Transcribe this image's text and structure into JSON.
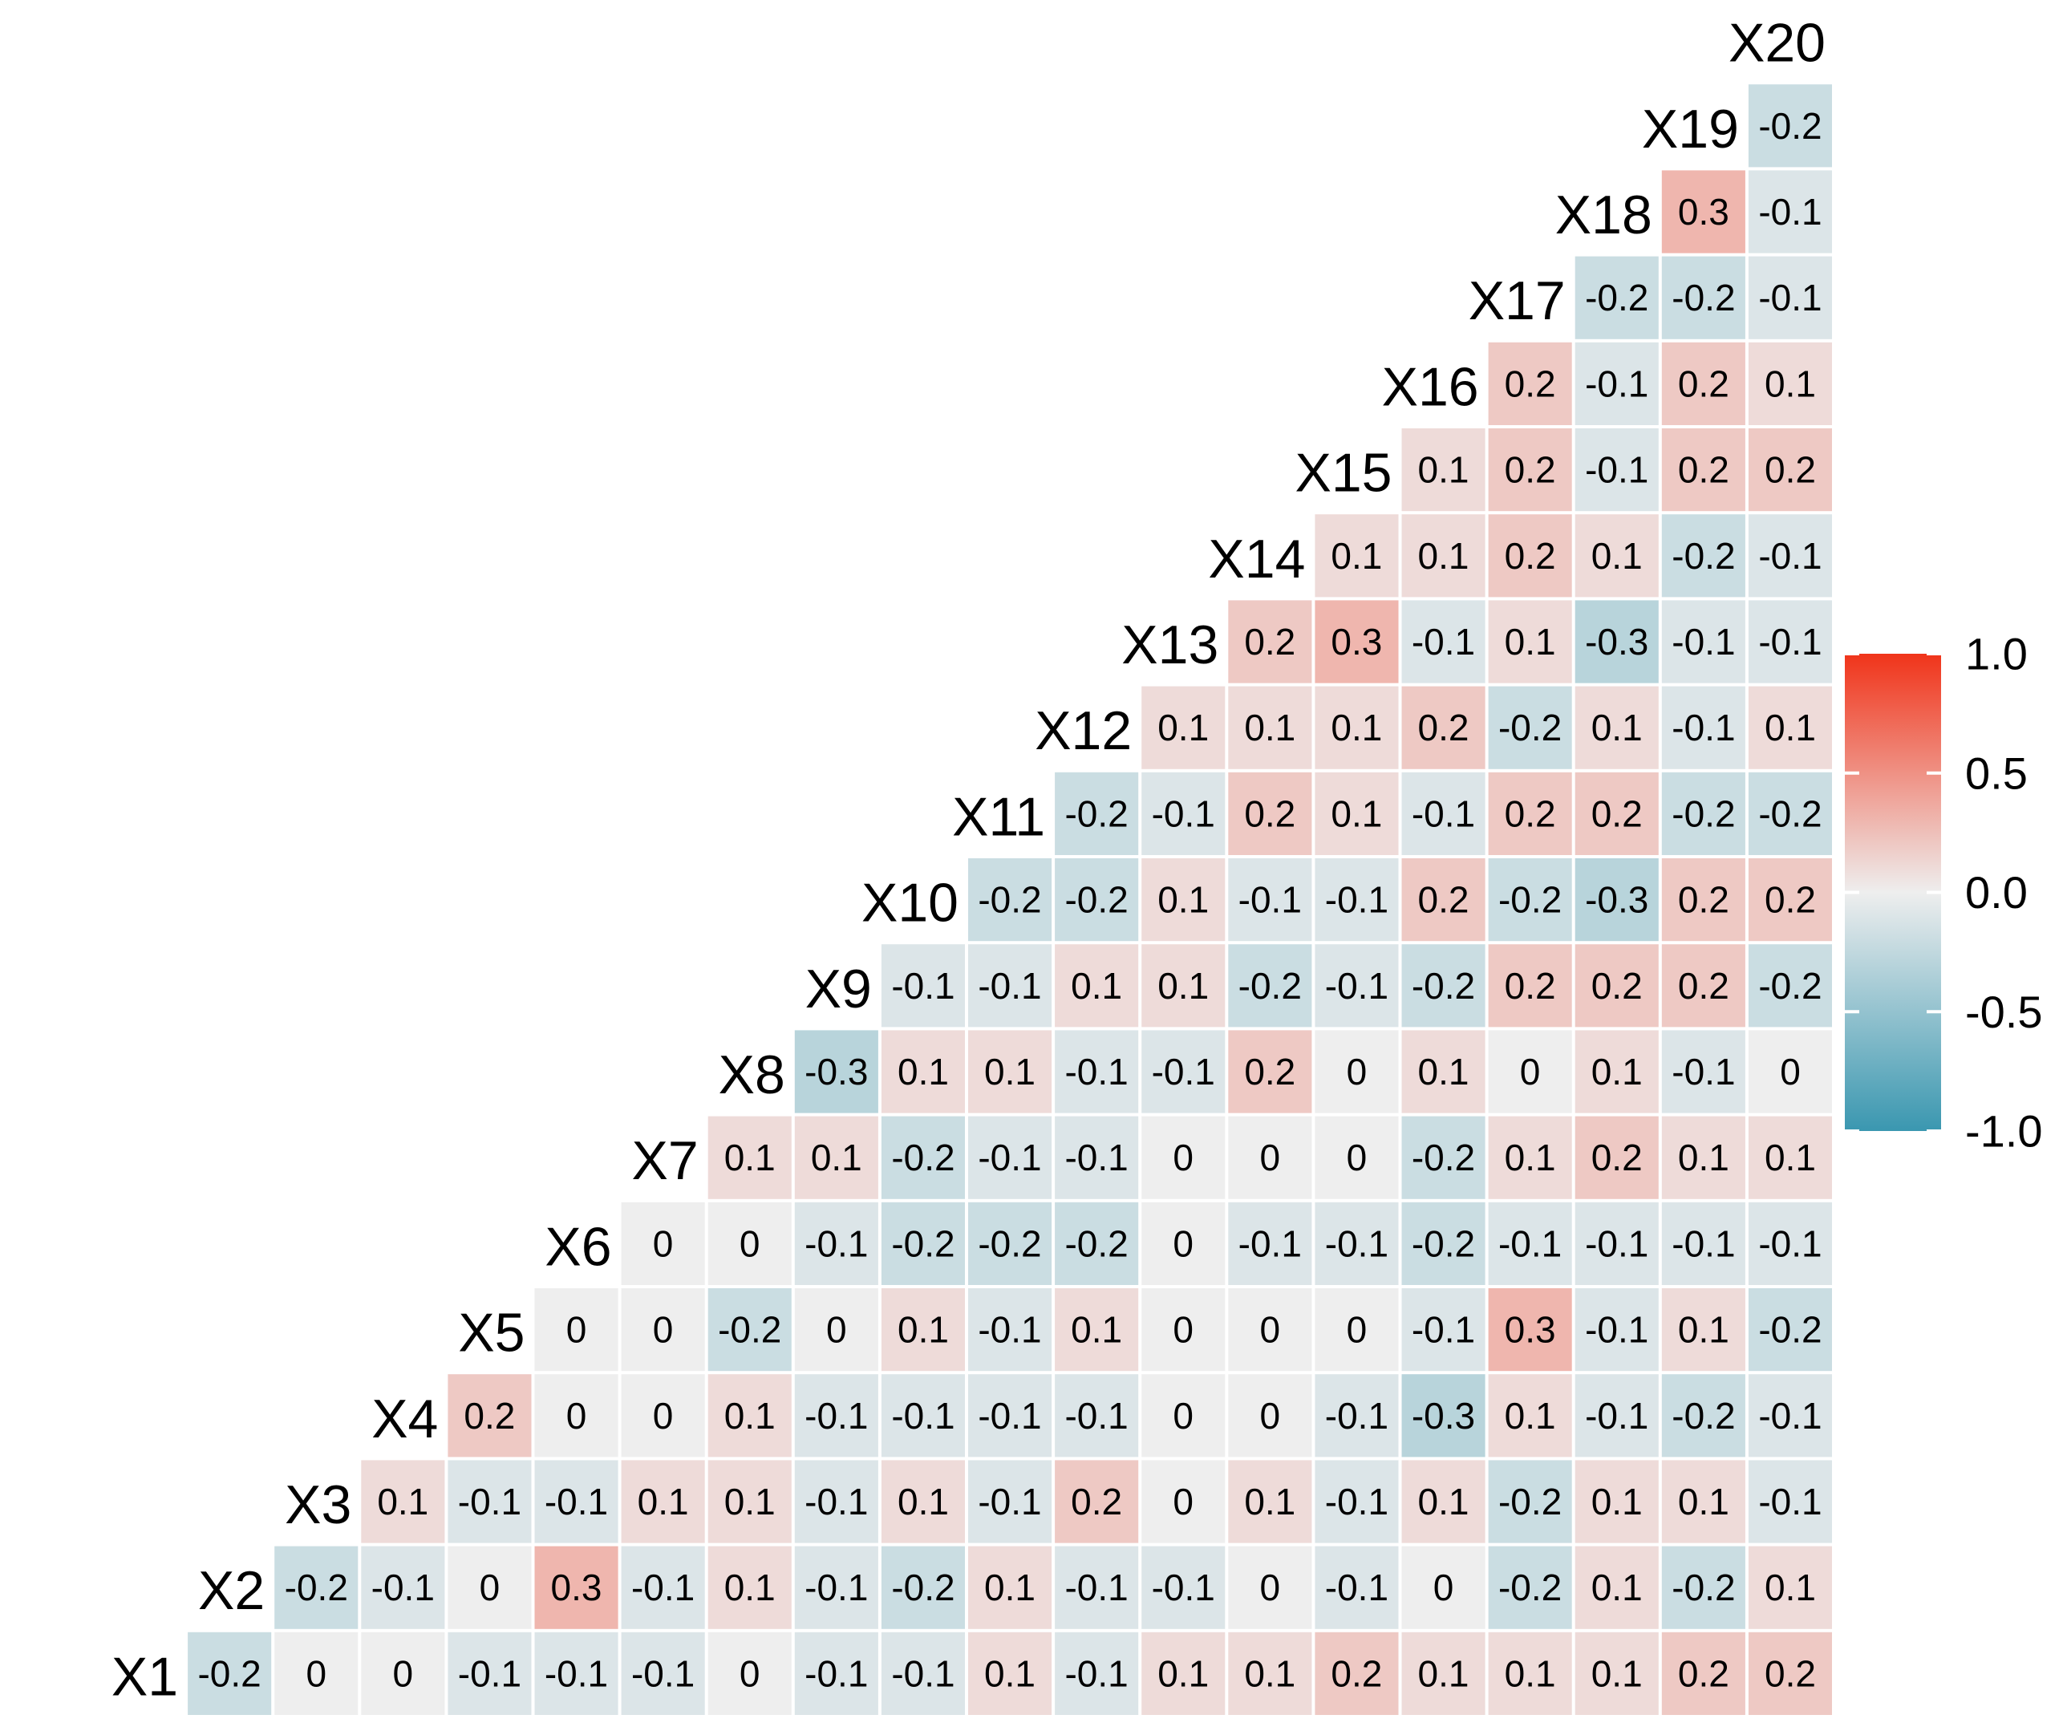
{
  "chart_data": {
    "type": "heatmap",
    "shape": "lower-triangle correlation matrix",
    "variables": [
      "X1",
      "X2",
      "X3",
      "X4",
      "X5",
      "X6",
      "X7",
      "X8",
      "X9",
      "X10",
      "X11",
      "X12",
      "X13",
      "X14",
      "X15",
      "X16",
      "X17",
      "X18",
      "X19",
      "X20"
    ],
    "rows": [
      {
        "label": "X1",
        "values": [
          "-0.2",
          "0",
          "0",
          "-0.1",
          "-0.1",
          "-0.1",
          "0",
          "-0.1",
          "-0.1",
          "0.1",
          "-0.1",
          "0.1",
          "0.1",
          "0.2",
          "0.1",
          "0.1",
          "0.1",
          "0.2",
          "0.2"
        ]
      },
      {
        "label": "X2",
        "values": [
          "-0.2",
          "-0.1",
          "0",
          "0.3",
          "-0.1",
          "0.1",
          "-0.1",
          "-0.2",
          "0.1",
          "-0.1",
          "-0.1",
          "0",
          "-0.1",
          "0",
          "-0.2",
          "0.1",
          "-0.2",
          "0.1"
        ]
      },
      {
        "label": "X3",
        "values": [
          "0.1",
          "-0.1",
          "-0.1",
          "0.1",
          "0.1",
          "-0.1",
          "0.1",
          "-0.1",
          "0.2",
          "0",
          "0.1",
          "-0.1",
          "0.1",
          "-0.2",
          "0.1",
          "0.1",
          "-0.1"
        ]
      },
      {
        "label": "X4",
        "values": [
          "0.2",
          "0",
          "0",
          "0.1",
          "-0.1",
          "-0.1",
          "-0.1",
          "-0.1",
          "0",
          "0",
          "-0.1",
          "-0.3",
          "0.1",
          "-0.1",
          "-0.2",
          "-0.1"
        ]
      },
      {
        "label": "X5",
        "values": [
          "0",
          "0",
          "-0.2",
          "0",
          "0.1",
          "-0.1",
          "0.1",
          "0",
          "0",
          "0",
          "-0.1",
          "0.3",
          "-0.1",
          "0.1",
          "-0.2"
        ]
      },
      {
        "label": "X6",
        "values": [
          "0",
          "0",
          "-0.1",
          "-0.2",
          "-0.2",
          "-0.2",
          "0",
          "-0.1",
          "-0.1",
          "-0.2",
          "-0.1",
          "-0.1",
          "-0.1",
          "-0.1"
        ]
      },
      {
        "label": "X7",
        "values": [
          "0.1",
          "0.1",
          "-0.2",
          "-0.1",
          "-0.1",
          "0",
          "0",
          "0",
          "-0.2",
          "0.1",
          "0.2",
          "0.1",
          "0.1"
        ]
      },
      {
        "label": "X8",
        "values": [
          "-0.3",
          "0.1",
          "0.1",
          "-0.1",
          "-0.1",
          "0.2",
          "0",
          "0.1",
          "0",
          "0.1",
          "-0.1",
          "0"
        ]
      },
      {
        "label": "X9",
        "values": [
          "-0.1",
          "-0.1",
          "0.1",
          "0.1",
          "-0.2",
          "-0.1",
          "-0.2",
          "0.2",
          "0.2",
          "0.2",
          "-0.2"
        ]
      },
      {
        "label": "X10",
        "values": [
          "-0.2",
          "-0.2",
          "0.1",
          "-0.1",
          "-0.1",
          "0.2",
          "-0.2",
          "-0.3",
          "0.2",
          "0.2"
        ]
      },
      {
        "label": "X11",
        "values": [
          "-0.2",
          "-0.1",
          "0.2",
          "0.1",
          "-0.1",
          "0.2",
          "0.2",
          "-0.2",
          "-0.2"
        ]
      },
      {
        "label": "X12",
        "values": [
          "0.1",
          "0.1",
          "0.1",
          "0.2",
          "-0.2",
          "0.1",
          "-0.1",
          "0.1"
        ]
      },
      {
        "label": "X13",
        "values": [
          "0.2",
          "0.3",
          "-0.1",
          "0.1",
          "-0.3",
          "-0.1",
          "-0.1"
        ]
      },
      {
        "label": "X14",
        "values": [
          "0.1",
          "0.1",
          "0.2",
          "0.1",
          "-0.2",
          "-0.1"
        ]
      },
      {
        "label": "X15",
        "values": [
          "0.1",
          "0.2",
          "-0.1",
          "0.2",
          "0.2"
        ]
      },
      {
        "label": "X16",
        "values": [
          "0.2",
          "-0.1",
          "0.2",
          "0.1"
        ]
      },
      {
        "label": "X17",
        "values": [
          "-0.2",
          "-0.2",
          "-0.1"
        ]
      },
      {
        "label": "X18",
        "values": [
          "0.3",
          "-0.1"
        ]
      },
      {
        "label": "X19",
        "values": [
          "-0.2"
        ]
      },
      {
        "label": "X20",
        "values": []
      }
    ],
    "legend": {
      "position": "right",
      "ticks": [
        "1.0",
        "0.5",
        "0.0",
        "-0.5",
        "-1.0"
      ],
      "range": [
        -1,
        1
      ],
      "colors": {
        "low": "#3A97B0",
        "mid": "#EEEEEE",
        "high": "#F0341A"
      }
    },
    "grid": false
  }
}
